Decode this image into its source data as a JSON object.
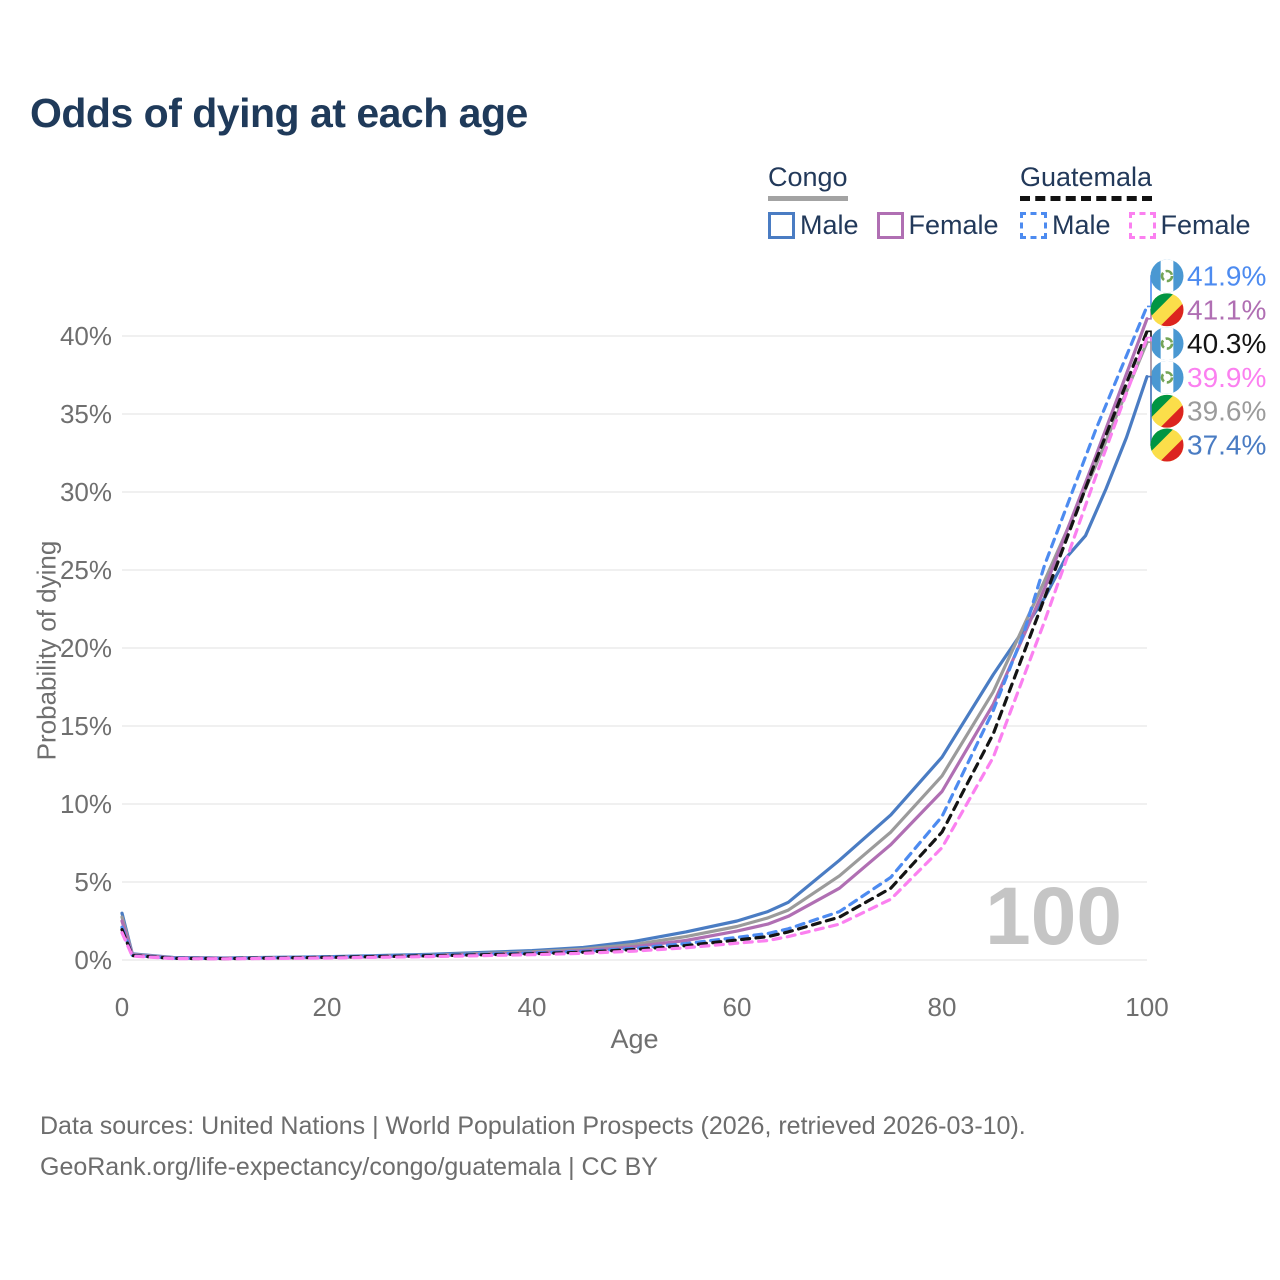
{
  "title": "Odds of dying at each age",
  "watermark": "100",
  "legend": {
    "congo": {
      "label": "Congo",
      "underline_color": "#a3a3a3",
      "underline_style": "solid",
      "male_label": "Male",
      "female_label": "Female"
    },
    "guatemala": {
      "label": "Guatemala",
      "underline_color": "#121212",
      "underline_style": "dashed",
      "male_label": "Male",
      "female_label": "Female"
    }
  },
  "chart_data": {
    "type": "line",
    "title": "Odds of dying at each age",
    "xlabel": "Age",
    "ylabel": "Probability of dying",
    "xlim": [
      0,
      100
    ],
    "ylim": [
      0,
      43.5
    ],
    "grid": true,
    "legend_position": "top-right",
    "x_tick_values": [
      0,
      20,
      40,
      60,
      80,
      100
    ],
    "x_tick_labels": [
      "0",
      "20",
      "40",
      "60",
      "80",
      "100"
    ],
    "y_tick_values": [
      0,
      5,
      10,
      15,
      20,
      25,
      30,
      35,
      40
    ],
    "y_tick_labels": [
      "0%",
      "5%",
      "10%",
      "15%",
      "20%",
      "25%",
      "30%",
      "35%",
      "40%"
    ],
    "series": [
      {
        "id": "congo-male",
        "name": "Congo Male",
        "country": "Congo",
        "sex": "Male",
        "color": "#4a7cc3",
        "dashed": false,
        "flag": "congo",
        "end_label": "37.4%",
        "end_value": 37.4,
        "points": [
          [
            0,
            3.0
          ],
          [
            1,
            0.4
          ],
          [
            5,
            0.16
          ],
          [
            10,
            0.13
          ],
          [
            20,
            0.21
          ],
          [
            30,
            0.36
          ],
          [
            40,
            0.6
          ],
          [
            45,
            0.8
          ],
          [
            50,
            1.2
          ],
          [
            55,
            1.8
          ],
          [
            60,
            2.5
          ],
          [
            63,
            3.1
          ],
          [
            65,
            3.7
          ],
          [
            70,
            6.4
          ],
          [
            75,
            9.3
          ],
          [
            80,
            13.0
          ],
          [
            85,
            18.3
          ],
          [
            88,
            21.2
          ],
          [
            90,
            23.2
          ],
          [
            92,
            25.7
          ],
          [
            94,
            27.2
          ],
          [
            96,
            30.2
          ],
          [
            98,
            33.5
          ],
          [
            100,
            37.4
          ]
        ]
      },
      {
        "id": "congo-all",
        "name": "Congo (both sexes)",
        "country": "Congo",
        "sex": "All",
        "color": "#9b9b9b",
        "dashed": false,
        "flag": "congo",
        "end_label": "39.6%",
        "end_value": 39.6,
        "points": [
          [
            0,
            2.75
          ],
          [
            1,
            0.36
          ],
          [
            5,
            0.14
          ],
          [
            10,
            0.12
          ],
          [
            20,
            0.18
          ],
          [
            30,
            0.31
          ],
          [
            40,
            0.52
          ],
          [
            45,
            0.7
          ],
          [
            50,
            1.0
          ],
          [
            55,
            1.5
          ],
          [
            60,
            2.15
          ],
          [
            63,
            2.7
          ],
          [
            65,
            3.2
          ],
          [
            70,
            5.4
          ],
          [
            75,
            8.2
          ],
          [
            80,
            11.8
          ],
          [
            85,
            17.2
          ],
          [
            90,
            24.3
          ],
          [
            95,
            31.7
          ],
          [
            100,
            39.6
          ]
        ]
      },
      {
        "id": "congo-female",
        "name": "Congo Female",
        "country": "Congo",
        "sex": "Female",
        "color": "#b06fb3",
        "dashed": false,
        "flag": "congo",
        "end_label": "41.1%",
        "end_value": 41.1,
        "points": [
          [
            0,
            2.5
          ],
          [
            1,
            0.33
          ],
          [
            5,
            0.13
          ],
          [
            10,
            0.11
          ],
          [
            20,
            0.16
          ],
          [
            30,
            0.27
          ],
          [
            40,
            0.45
          ],
          [
            45,
            0.6
          ],
          [
            50,
            0.85
          ],
          [
            55,
            1.25
          ],
          [
            60,
            1.85
          ],
          [
            63,
            2.3
          ],
          [
            65,
            2.8
          ],
          [
            70,
            4.6
          ],
          [
            75,
            7.4
          ],
          [
            80,
            10.8
          ],
          [
            85,
            16.4
          ],
          [
            90,
            23.8
          ],
          [
            95,
            32.3
          ],
          [
            100,
            41.1
          ]
        ]
      },
      {
        "id": "guatemala-male",
        "name": "Guatemala Male",
        "country": "Guatemala",
        "sex": "Male",
        "color": "#4d8bf0",
        "dashed": true,
        "flag": "guatemala",
        "end_label": "41.9%",
        "end_value": 41.9,
        "points": [
          [
            0,
            2.1
          ],
          [
            1,
            0.3
          ],
          [
            5,
            0.11
          ],
          [
            10,
            0.1
          ],
          [
            20,
            0.2
          ],
          [
            30,
            0.3
          ],
          [
            40,
            0.45
          ],
          [
            45,
            0.55
          ],
          [
            50,
            0.75
          ],
          [
            55,
            1.05
          ],
          [
            60,
            1.45
          ],
          [
            63,
            1.7
          ],
          [
            65,
            2.0
          ],
          [
            70,
            3.1
          ],
          [
            75,
            5.3
          ],
          [
            80,
            9.2
          ],
          [
            85,
            16.0
          ],
          [
            88,
            21.0
          ],
          [
            90,
            25.3
          ],
          [
            95,
            34.0
          ],
          [
            100,
            41.9
          ]
        ]
      },
      {
        "id": "guatemala-all",
        "name": "Guatemala (both sexes)",
        "country": "Guatemala",
        "sex": "All",
        "color": "#141414",
        "dashed": true,
        "flag": "guatemala",
        "end_label": "40.3%",
        "end_value": 40.3,
        "points": [
          [
            0,
            1.95
          ],
          [
            1,
            0.28
          ],
          [
            5,
            0.1
          ],
          [
            10,
            0.09
          ],
          [
            20,
            0.17
          ],
          [
            30,
            0.27
          ],
          [
            40,
            0.4
          ],
          [
            45,
            0.5
          ],
          [
            50,
            0.67
          ],
          [
            55,
            0.92
          ],
          [
            60,
            1.28
          ],
          [
            63,
            1.5
          ],
          [
            65,
            1.8
          ],
          [
            70,
            2.75
          ],
          [
            75,
            4.6
          ],
          [
            80,
            8.2
          ],
          [
            85,
            14.5
          ],
          [
            90,
            23.2
          ],
          [
            95,
            32.0
          ],
          [
            100,
            40.3
          ]
        ]
      },
      {
        "id": "guatemala-female",
        "name": "Guatemala Female",
        "country": "Guatemala",
        "sex": "Female",
        "color": "#fb80f0",
        "dashed": true,
        "flag": "guatemala",
        "end_label": "39.9%",
        "end_value": 39.9,
        "points": [
          [
            0,
            1.75
          ],
          [
            1,
            0.25
          ],
          [
            5,
            0.09
          ],
          [
            10,
            0.08
          ],
          [
            20,
            0.13
          ],
          [
            30,
            0.22
          ],
          [
            40,
            0.34
          ],
          [
            45,
            0.43
          ],
          [
            50,
            0.57
          ],
          [
            55,
            0.78
          ],
          [
            60,
            1.08
          ],
          [
            63,
            1.25
          ],
          [
            65,
            1.5
          ],
          [
            70,
            2.3
          ],
          [
            75,
            3.9
          ],
          [
            80,
            7.2
          ],
          [
            85,
            13.0
          ],
          [
            90,
            21.7
          ],
          [
            95,
            31.0
          ],
          [
            100,
            39.9
          ]
        ]
      }
    ],
    "end_label_order": [
      "guatemala-male",
      "congo-female",
      "guatemala-all",
      "guatemala-female",
      "congo-all",
      "congo-male"
    ]
  },
  "footer": {
    "line1": "Data sources: United Nations | World Population Prospects (2026, retrieved 2026-03-10).",
    "line2": "GeoRank.org/life-expectancy/congo/guatemala | CC BY"
  }
}
